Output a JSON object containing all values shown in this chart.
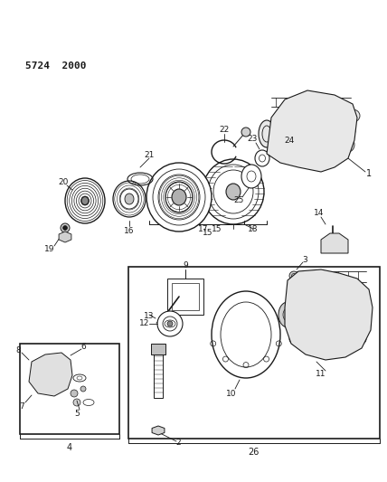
{
  "part_number": "5724  2000",
  "bg": "#ffffff",
  "fg": "#1a1a1a",
  "figsize": [
    4.28,
    5.33
  ],
  "dpi": 100
}
